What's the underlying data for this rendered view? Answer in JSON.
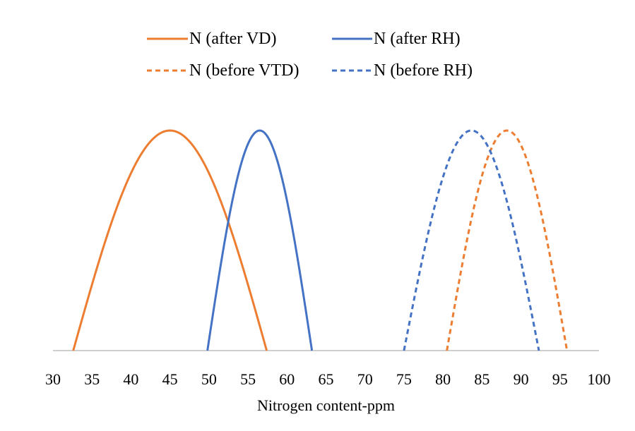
{
  "chart_data": {
    "type": "line",
    "title": "",
    "xlabel": "Nitrogen content-ppm",
    "ylabel": "",
    "xlim": [
      30,
      100
    ],
    "x_ticks": [
      30,
      35,
      40,
      45,
      50,
      55,
      60,
      65,
      70,
      75,
      80,
      85,
      90,
      95,
      100
    ],
    "grid": false,
    "legend_position": "top",
    "series": [
      {
        "name": "N (after VD)",
        "color": "#ED7D31",
        "dash": "solid",
        "x": [
          32.6,
          45.0,
          57.4
        ],
        "y": [
          0,
          1,
          0
        ]
      },
      {
        "name": "N (after RH)",
        "color": "#4472C4",
        "dash": "solid",
        "x": [
          49.8,
          56.5,
          63.2
        ],
        "y": [
          0,
          1,
          0
        ]
      },
      {
        "name": "N (before VTD)",
        "color": "#ED7D31",
        "dash": "dashed",
        "x": [
          80.5,
          88.2,
          95.9
        ],
        "y": [
          0,
          1,
          0
        ]
      },
      {
        "name": "N (before RH)",
        "color": "#4472C4",
        "dash": "dashed",
        "x": [
          75.0,
          83.6,
          92.3
        ],
        "y": [
          0,
          1,
          0
        ]
      }
    ]
  }
}
